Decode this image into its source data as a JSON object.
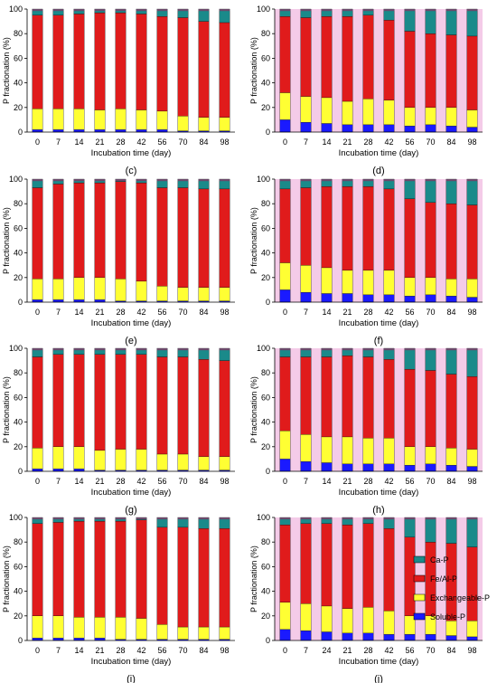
{
  "legend": {
    "entries": [
      "Ca-P",
      "Fe/Al-P",
      "Exchangeable-P",
      "Soluble-P"
    ],
    "colors": [
      "#1a8a8a",
      "#e01b1b",
      "#ffff33",
      "#1a1aff"
    ]
  },
  "chart_data": [
    {
      "type": "bar",
      "panel_label": "(c)",
      "ylabel": "P fractionation (%)",
      "xlabel": "Incubation time (day)",
      "ylim": [
        0,
        100
      ],
      "yticks": [
        0,
        20,
        40,
        60,
        80,
        100
      ],
      "stacked": true,
      "categories": [
        "0",
        "7",
        "14",
        "21",
        "28",
        "42",
        "56",
        "70",
        "84",
        "98"
      ],
      "series": [
        {
          "name": "Soluble-P",
          "values": [
            2,
            2,
            2,
            2,
            2,
            2,
            2,
            1,
            1,
            1
          ]
        },
        {
          "name": "Exchangeable-P",
          "values": [
            17,
            17,
            17,
            16,
            17,
            16,
            15,
            12,
            11,
            11
          ]
        },
        {
          "name": "Fe/Al-P",
          "values": [
            76,
            76,
            77,
            79,
            78,
            78,
            77,
            80,
            78,
            77
          ]
        },
        {
          "name": "Ca-P",
          "values": [
            5,
            5,
            4,
            3,
            3,
            4,
            6,
            7,
            10,
            11
          ]
        }
      ]
    },
    {
      "type": "bar",
      "panel_label": "(d)",
      "ylabel": "P fractionation (%)",
      "xlabel": "Incubation time (day)",
      "ylim": [
        0,
        100
      ],
      "yticks": [
        0,
        20,
        40,
        60,
        80,
        100
      ],
      "stacked": true,
      "categories": [
        "0",
        "7",
        "14",
        "21",
        "28",
        "42",
        "56",
        "70",
        "84",
        "98"
      ],
      "series": [
        {
          "name": "Soluble-P",
          "values": [
            10,
            8,
            7,
            6,
            6,
            6,
            5,
            6,
            5,
            4
          ]
        },
        {
          "name": "Exchangeable-P",
          "values": [
            22,
            21,
            21,
            19,
            21,
            20,
            15,
            14,
            15,
            14
          ]
        },
        {
          "name": "Fe/Al-P",
          "values": [
            62,
            64,
            66,
            69,
            68,
            65,
            62,
            60,
            59,
            60
          ]
        },
        {
          "name": "Ca-P",
          "values": [
            6,
            7,
            6,
            6,
            5,
            9,
            18,
            20,
            21,
            22
          ]
        }
      ]
    },
    {
      "type": "bar",
      "panel_label": "(e)",
      "ylabel": "P fractionation (%)",
      "xlabel": "Incubation time (day)",
      "ylim": [
        0,
        100
      ],
      "yticks": [
        0,
        20,
        40,
        60,
        80,
        100
      ],
      "stacked": true,
      "categories": [
        "0",
        "7",
        "14",
        "21",
        "28",
        "42",
        "56",
        "70",
        "84",
        "98"
      ],
      "series": [
        {
          "name": "Soluble-P",
          "values": [
            2,
            2,
            2,
            2,
            1,
            1,
            1,
            1,
            1,
            1
          ]
        },
        {
          "name": "Exchangeable-P",
          "values": [
            17,
            17,
            18,
            18,
            18,
            16,
            12,
            11,
            11,
            11
          ]
        },
        {
          "name": "Fe/Al-P",
          "values": [
            74,
            77,
            77,
            77,
            79,
            80,
            80,
            81,
            80,
            80
          ]
        },
        {
          "name": "Ca-P",
          "values": [
            7,
            4,
            3,
            3,
            2,
            3,
            7,
            7,
            8,
            8
          ]
        }
      ]
    },
    {
      "type": "bar",
      "panel_label": "(f)",
      "ylabel": "P fractionation (%)",
      "xlabel": "Incubation time (day)",
      "ylim": [
        0,
        100
      ],
      "yticks": [
        0,
        20,
        40,
        60,
        80,
        100
      ],
      "stacked": true,
      "categories": [
        "0",
        "7",
        "14",
        "21",
        "28",
        "42",
        "56",
        "70",
        "84",
        "98"
      ],
      "series": [
        {
          "name": "Soluble-P",
          "values": [
            10,
            8,
            7,
            7,
            6,
            6,
            5,
            6,
            5,
            4
          ]
        },
        {
          "name": "Exchangeable-P",
          "values": [
            22,
            22,
            21,
            19,
            20,
            20,
            15,
            14,
            14,
            15
          ]
        },
        {
          "name": "Fe/Al-P",
          "values": [
            60,
            63,
            66,
            68,
            68,
            66,
            64,
            61,
            61,
            60
          ]
        },
        {
          "name": "Ca-P",
          "values": [
            8,
            7,
            6,
            6,
            6,
            8,
            16,
            19,
            20,
            21
          ]
        }
      ]
    },
    {
      "type": "bar",
      "panel_label": "(g)",
      "ylabel": "P fractionation (%)",
      "xlabel": "Incubation time (day)",
      "ylim": [
        0,
        100
      ],
      "yticks": [
        0,
        20,
        40,
        60,
        80,
        100
      ],
      "stacked": true,
      "categories": [
        "0",
        "7",
        "14",
        "21",
        "28",
        "42",
        "56",
        "70",
        "84",
        "98"
      ],
      "series": [
        {
          "name": "Soluble-P",
          "values": [
            2,
            2,
            2,
            1,
            1,
            1,
            1,
            1,
            1,
            1
          ]
        },
        {
          "name": "Exchangeable-P",
          "values": [
            17,
            18,
            18,
            16,
            17,
            17,
            13,
            13,
            11,
            11
          ]
        },
        {
          "name": "Fe/Al-P",
          "values": [
            74,
            75,
            75,
            78,
            77,
            77,
            79,
            79,
            79,
            78
          ]
        },
        {
          "name": "Ca-P",
          "values": [
            7,
            5,
            5,
            5,
            5,
            5,
            7,
            7,
            9,
            10
          ]
        }
      ]
    },
    {
      "type": "bar",
      "panel_label": "(h)",
      "ylabel": "P fractionation (%)",
      "xlabel": "Incubation time (day)",
      "ylim": [
        0,
        100
      ],
      "yticks": [
        0,
        20,
        40,
        60,
        80,
        100
      ],
      "stacked": true,
      "categories": [
        "0",
        "7",
        "14",
        "21",
        "28",
        "42",
        "56",
        "70",
        "84",
        "98"
      ],
      "series": [
        {
          "name": "Soluble-P",
          "values": [
            10,
            8,
            7,
            6,
            6,
            6,
            5,
            6,
            5,
            4
          ]
        },
        {
          "name": "Exchangeable-P",
          "values": [
            23,
            22,
            21,
            22,
            21,
            21,
            15,
            14,
            14,
            14
          ]
        },
        {
          "name": "Fe/Al-P",
          "values": [
            60,
            63,
            65,
            66,
            66,
            64,
            63,
            62,
            60,
            59
          ]
        },
        {
          "name": "Ca-P",
          "values": [
            7,
            7,
            7,
            6,
            7,
            9,
            17,
            18,
            21,
            23
          ]
        }
      ]
    },
    {
      "type": "bar",
      "panel_label": "(i)",
      "ylabel": "P fractionation (%)",
      "xlabel": "Incubation time (day)",
      "ylim": [
        0,
        100
      ],
      "yticks": [
        0,
        20,
        40,
        60,
        80,
        100
      ],
      "stacked": true,
      "categories": [
        "0",
        "7",
        "14",
        "21",
        "28",
        "42",
        "56",
        "70",
        "84",
        "98"
      ],
      "series": [
        {
          "name": "Soluble-P",
          "values": [
            2,
            2,
            2,
            2,
            1,
            1,
            1,
            1,
            1,
            1
          ]
        },
        {
          "name": "Exchangeable-P",
          "values": [
            18,
            18,
            17,
            17,
            18,
            17,
            12,
            10,
            10,
            10
          ]
        },
        {
          "name": "Fe/Al-P",
          "values": [
            75,
            76,
            78,
            78,
            78,
            80,
            79,
            81,
            80,
            80
          ]
        },
        {
          "name": "Ca-P",
          "values": [
            5,
            4,
            3,
            3,
            3,
            2,
            8,
            8,
            9,
            9
          ]
        }
      ]
    },
    {
      "type": "bar",
      "panel_label": "(j)",
      "ylabel": "P fractionation (%)",
      "xlabel": "Incubation time (day)",
      "ylim": [
        0,
        100
      ],
      "yticks": [
        0,
        20,
        40,
        60,
        80,
        100
      ],
      "stacked": true,
      "categories": [
        "0",
        "7",
        "24",
        "21",
        "28",
        "42",
        "56",
        "70",
        "84",
        "98"
      ],
      "series": [
        {
          "name": "Soluble-P",
          "values": [
            9,
            8,
            7,
            6,
            6,
            5,
            5,
            5,
            4,
            3
          ]
        },
        {
          "name": "Exchangeable-P",
          "values": [
            22,
            22,
            21,
            20,
            21,
            19,
            15,
            15,
            12,
            13
          ]
        },
        {
          "name": "Fe/Al-P",
          "values": [
            63,
            65,
            67,
            68,
            68,
            67,
            64,
            60,
            63,
            60
          ]
        },
        {
          "name": "Ca-P",
          "values": [
            6,
            5,
            5,
            6,
            5,
            9,
            16,
            20,
            21,
            24
          ]
        }
      ]
    }
  ]
}
